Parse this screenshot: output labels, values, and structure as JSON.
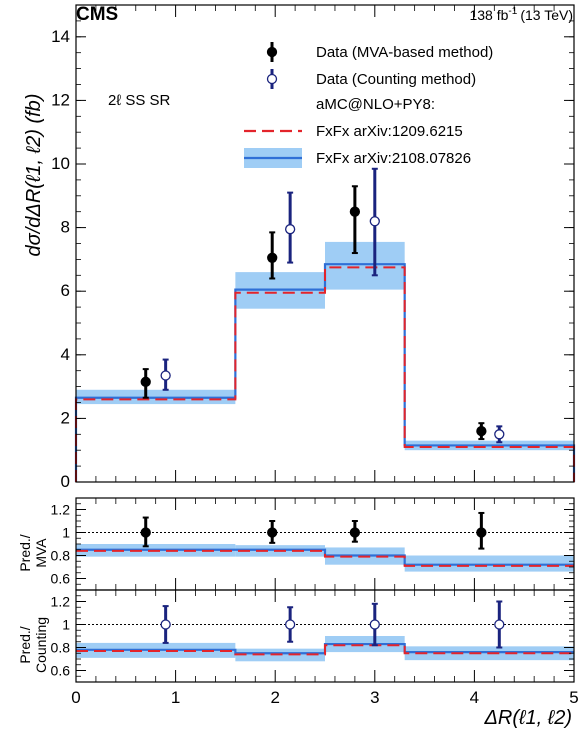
{
  "header": {
    "experiment": "CMS",
    "lumi": "138 fb",
    "lumi_sup": "-1",
    "energy": "(13 TeV)"
  },
  "region_label": "2ℓ SS SR",
  "colors": {
    "mva": "#000000",
    "counting": "#1a237e",
    "fxfx_old": "#e3242b",
    "fxfx_new": "#2f6fd6",
    "band": "#9fcdf5"
  },
  "chart_data": {
    "type": "line",
    "xlabel": "ΔR(ℓ1, ℓ2)",
    "ylabel": "dσ/dΔR(ℓ1, ℓ2) (fb)",
    "xlim": [
      0,
      5
    ],
    "bin_edges": [
      0,
      1.6,
      2.5,
      3.3,
      5
    ],
    "legend": {
      "position": "top-right",
      "entries": [
        {
          "label": "Data (MVA-based method)",
          "marker": "filled"
        },
        {
          "label": "Data (Counting method)",
          "marker": "open"
        },
        {
          "label": "aMC@NLO+PY8:",
          "marker": "none"
        },
        {
          "label": "FxFx arXiv:1209.6215",
          "marker": "dashed"
        },
        {
          "label": "FxFx arXiv:2108.07826",
          "marker": "band"
        }
      ]
    },
    "main": {
      "ylim": [
        0,
        15
      ],
      "yticks": [
        0,
        2,
        4,
        6,
        8,
        10,
        12,
        14
      ],
      "fxfx_old": [
        2.6,
        5.95,
        6.75,
        1.1
      ],
      "fxfx_new": [
        2.65,
        6.05,
        6.85,
        1.15
      ],
      "band_low": [
        2.45,
        5.45,
        6.05,
        1.0
      ],
      "band_high": [
        2.9,
        6.6,
        7.55,
        1.3
      ],
      "data_mva": [
        {
          "x": 0.7,
          "y": 3.15,
          "lo": 2.65,
          "hi": 3.55
        },
        {
          "x": 1.97,
          "y": 7.05,
          "lo": 6.4,
          "hi": 7.85
        },
        {
          "x": 2.8,
          "y": 8.5,
          "lo": 7.2,
          "hi": 9.3
        },
        {
          "x": 4.07,
          "y": 1.6,
          "lo": 1.35,
          "hi": 1.85
        }
      ],
      "data_counting": [
        {
          "x": 0.9,
          "y": 3.35,
          "lo": 2.9,
          "hi": 3.85
        },
        {
          "x": 2.15,
          "y": 7.95,
          "lo": 6.9,
          "hi": 9.1
        },
        {
          "x": 3.0,
          "y": 8.2,
          "lo": 6.5,
          "hi": 9.85
        },
        {
          "x": 4.25,
          "y": 1.5,
          "lo": 1.25,
          "hi": 1.75
        }
      ]
    },
    "ratio_mva": {
      "ylabel_line1": "Pred./",
      "ylabel_line2": "MVA",
      "ylim": [
        0.5,
        1.3
      ],
      "yticks": [
        0.6,
        0.8,
        1,
        1.2
      ],
      "fxfx_old": [
        0.84,
        0.84,
        0.79,
        0.71
      ],
      "fxfx_new": [
        0.85,
        0.85,
        0.8,
        0.72
      ],
      "band_low": [
        0.79,
        0.79,
        0.72,
        0.66
      ],
      "band_high": [
        0.9,
        0.89,
        0.87,
        0.8
      ],
      "points": [
        {
          "x": 0.7,
          "y": 1.0,
          "lo": 0.88,
          "hi": 1.13
        },
        {
          "x": 1.97,
          "y": 1.0,
          "lo": 0.91,
          "hi": 1.1
        },
        {
          "x": 2.8,
          "y": 1.0,
          "lo": 0.92,
          "hi": 1.1
        },
        {
          "x": 4.07,
          "y": 1.0,
          "lo": 0.86,
          "hi": 1.17
        }
      ]
    },
    "ratio_counting": {
      "ylabel_line1": "Pred./",
      "ylabel_line2": "Counting",
      "ylim": [
        0.5,
        1.3
      ],
      "yticks": [
        0.6,
        0.8,
        1,
        1.2
      ],
      "fxfx_old": [
        0.77,
        0.74,
        0.82,
        0.75
      ],
      "fxfx_new": [
        0.78,
        0.75,
        0.83,
        0.76
      ],
      "band_low": [
        0.71,
        0.68,
        0.76,
        0.69
      ],
      "band_high": [
        0.84,
        0.79,
        0.9,
        0.81
      ],
      "points": [
        {
          "x": 0.9,
          "y": 1.0,
          "lo": 0.84,
          "hi": 1.16
        },
        {
          "x": 2.15,
          "y": 1.0,
          "lo": 0.85,
          "hi": 1.15
        },
        {
          "x": 3.0,
          "y": 1.0,
          "lo": 0.82,
          "hi": 1.18
        },
        {
          "x": 4.25,
          "y": 1.0,
          "lo": 0.8,
          "hi": 1.2
        }
      ]
    },
    "xticks": [
      0,
      1,
      2,
      3,
      4,
      5
    ]
  }
}
